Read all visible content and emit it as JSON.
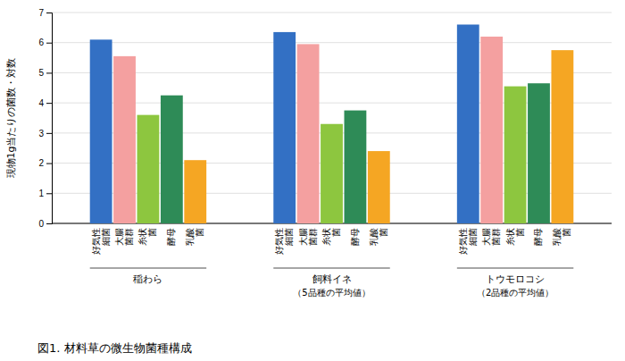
{
  "chart_data": {
    "type": "bar",
    "title": "図1. 材料草の微生物菌種構成",
    "y_label": "現物1g当たりの菌数・対数",
    "categories": [
      "稲わら",
      "飼料イネ\n（5品種の平均値）",
      "トウモロコシ\n（2品種の平均値）"
    ],
    "series": [
      {
        "name": "好気性\n細菌",
        "color": "#3370c4",
        "values": [
          6.1,
          6.35,
          6.6
        ]
      },
      {
        "name": "大腸\n菌群",
        "color": "#f4a0a0",
        "values": [
          5.55,
          5.95,
          6.2
        ]
      },
      {
        "name": "糸状\n菌",
        "color": "#8dc63f",
        "values": [
          3.6,
          3.3,
          4.55
        ]
      },
      {
        "name": "酵母",
        "color": "#2e8b57",
        "values": [
          4.25,
          3.75,
          4.65
        ]
      },
      {
        "name": "乳酸\n菌",
        "color": "#f5a623",
        "values": [
          2.1,
          2.4,
          5.75
        ]
      }
    ],
    "ylim": [
      0,
      7
    ],
    "yticks": [
      0,
      1,
      2,
      3,
      4,
      5,
      6,
      7
    ],
    "grid": true
  }
}
